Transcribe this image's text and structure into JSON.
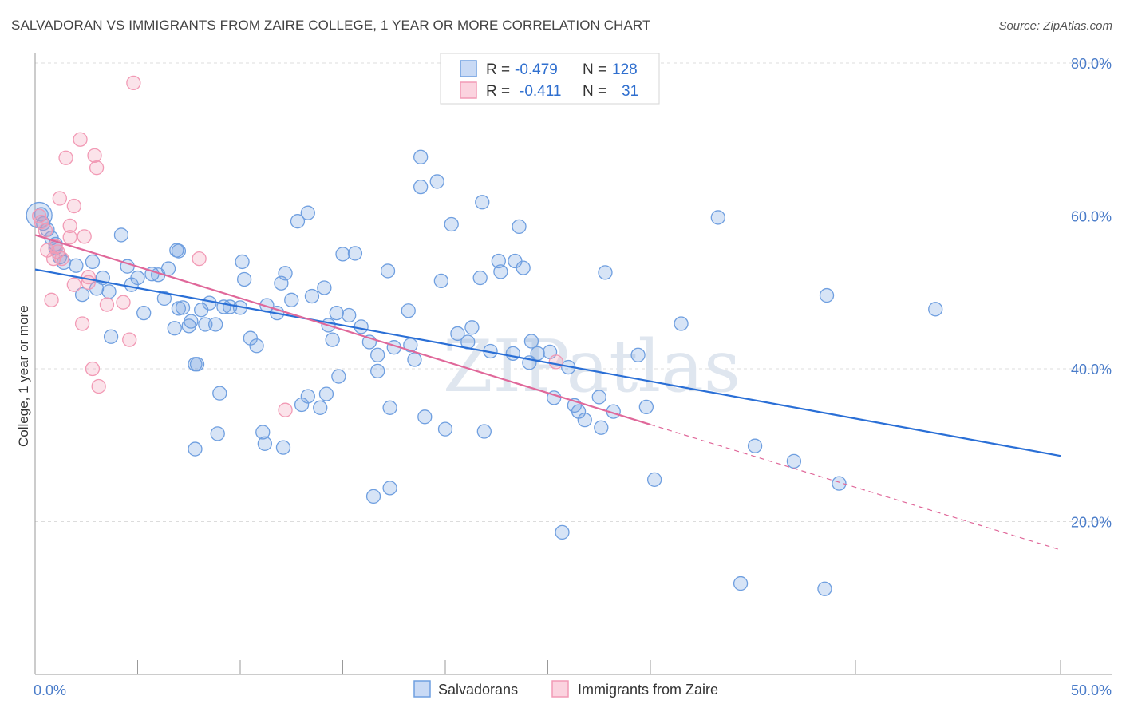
{
  "title": "SALVADORAN VS IMMIGRANTS FROM ZAIRE COLLEGE, 1 YEAR OR MORE CORRELATION CHART",
  "source": "Source: ZipAtlas.com",
  "watermark": "ZIPatlas",
  "legend": {
    "rows": [
      {
        "r_label": "R =",
        "r_value": "-0.479",
        "n_label": "N =",
        "n_value": "128",
        "color": "#6f9fe0"
      },
      {
        "r_label": "R =",
        "r_value": "-0.411",
        "n_label": "N =",
        "n_value": "31",
        "color": "#f29ab5"
      }
    ]
  },
  "bottom_legend": [
    "Salvadorans",
    "Immigrants from Zaire"
  ],
  "colors": {
    "blue": "#6f9fe0",
    "blue_line": "#2a6fd6",
    "pink": "#f29ab5",
    "pink_line": "#e0689a",
    "grid": "#dcdcdc"
  },
  "chart_data": {
    "type": "scatter",
    "title": "SALVADORAN VS IMMIGRANTS FROM ZAIRE COLLEGE, 1 YEAR OR MORE CORRELATION CHART",
    "xlabel": "",
    "ylabel": "College, 1 year or more",
    "xlim": [
      0,
      50
    ],
    "ylim": [
      0,
      85
    ],
    "x_tick_labels": [
      "0.0%",
      "50.0%"
    ],
    "y_ticks": [
      20,
      40,
      60,
      80
    ],
    "y_tick_labels": [
      "20.0%",
      "40.0%",
      "60.0%",
      "80.0%"
    ],
    "grid": true,
    "series": [
      {
        "name": "Salvadorans",
        "color": "#6f9fe0",
        "trend": {
          "x0": 0,
          "y0": 53.0,
          "x1": 50,
          "y1": 28.6
        },
        "points": [
          [
            0.3,
            60.2
          ],
          [
            0.4,
            59.0
          ],
          [
            0.6,
            58.2
          ],
          [
            0.8,
            57.1
          ],
          [
            1.0,
            56.3
          ],
          [
            1.0,
            55.8
          ],
          [
            1.2,
            54.6
          ],
          [
            1.4,
            53.9
          ],
          [
            2.0,
            53.5
          ],
          [
            2.8,
            54.0
          ],
          [
            3.3,
            51.9
          ],
          [
            3.0,
            50.5
          ],
          [
            3.6,
            50.1
          ],
          [
            2.3,
            49.7
          ],
          [
            3.7,
            44.2
          ],
          [
            4.2,
            57.5
          ],
          [
            4.5,
            53.4
          ],
          [
            5.0,
            51.9
          ],
          [
            4.7,
            51.0
          ],
          [
            5.3,
            47.3
          ],
          [
            5.7,
            52.4
          ],
          [
            6.0,
            52.3
          ],
          [
            6.5,
            53.1
          ],
          [
            6.3,
            49.2
          ],
          [
            7.0,
            47.9
          ],
          [
            6.8,
            45.3
          ],
          [
            7.2,
            48.0
          ],
          [
            7.5,
            45.6
          ],
          [
            7.6,
            46.2
          ],
          [
            6.9,
            55.5
          ],
          [
            7.0,
            55.4
          ],
          [
            8.1,
            47.7
          ],
          [
            8.5,
            48.6
          ],
          [
            8.3,
            45.8
          ],
          [
            8.8,
            45.8
          ],
          [
            9.2,
            48.1
          ],
          [
            9.5,
            48.1
          ],
          [
            7.8,
            40.6
          ],
          [
            7.9,
            40.6
          ],
          [
            9.0,
            36.8
          ],
          [
            8.9,
            31.5
          ],
          [
            10.1,
            54.0
          ],
          [
            10.2,
            51.7
          ],
          [
            10.5,
            44.0
          ],
          [
            10.8,
            43.0
          ],
          [
            10.0,
            48.0
          ],
          [
            11.3,
            48.3
          ],
          [
            12.0,
            51.2
          ],
          [
            12.2,
            52.5
          ],
          [
            12.5,
            49.0
          ],
          [
            11.8,
            47.3
          ],
          [
            12.8,
            59.3
          ],
          [
            13.3,
            60.4
          ],
          [
            13.5,
            49.5
          ],
          [
            14.1,
            50.6
          ],
          [
            14.7,
            47.3
          ],
          [
            15.3,
            47.0
          ],
          [
            15.6,
            55.1
          ],
          [
            14.5,
            43.8
          ],
          [
            14.2,
            36.7
          ],
          [
            13.9,
            34.9
          ],
          [
            13.3,
            36.4
          ],
          [
            14.8,
            39.0
          ],
          [
            15.9,
            45.5
          ],
          [
            16.3,
            43.5
          ],
          [
            16.7,
            41.8
          ],
          [
            17.2,
            52.8
          ],
          [
            17.5,
            42.8
          ],
          [
            18.2,
            47.6
          ],
          [
            18.5,
            41.2
          ],
          [
            18.8,
            63.8
          ],
          [
            18.8,
            67.7
          ],
          [
            19.6,
            64.5
          ],
          [
            19.8,
            51.5
          ],
          [
            20.3,
            58.9
          ],
          [
            20.6,
            44.6
          ],
          [
            21.1,
            43.5
          ],
          [
            21.3,
            45.4
          ],
          [
            21.8,
            61.8
          ],
          [
            22.2,
            42.3
          ],
          [
            22.6,
            54.1
          ],
          [
            22.7,
            52.7
          ],
          [
            23.6,
            58.6
          ],
          [
            23.4,
            54.1
          ],
          [
            23.8,
            53.2
          ],
          [
            24.2,
            43.6
          ],
          [
            24.5,
            42.0
          ],
          [
            25.1,
            42.2
          ],
          [
            24.1,
            40.8
          ],
          [
            23.3,
            42.0
          ],
          [
            25.3,
            36.2
          ],
          [
            26.0,
            40.2
          ],
          [
            26.3,
            35.2
          ],
          [
            26.5,
            34.4
          ],
          [
            26.8,
            33.3
          ],
          [
            27.5,
            36.3
          ],
          [
            27.6,
            32.3
          ],
          [
            28.2,
            34.4
          ],
          [
            27.8,
            52.6
          ],
          [
            29.4,
            41.8
          ],
          [
            29.8,
            35.0
          ],
          [
            30.2,
            25.5
          ],
          [
            31.5,
            45.9
          ],
          [
            33.3,
            59.8
          ],
          [
            35.1,
            29.9
          ],
          [
            37.0,
            27.9
          ],
          [
            38.6,
            49.6
          ],
          [
            39.2,
            25.0
          ],
          [
            38.5,
            11.2
          ],
          [
            34.4,
            11.9
          ],
          [
            25.7,
            18.6
          ],
          [
            21.9,
            31.8
          ],
          [
            20.0,
            32.1
          ],
          [
            19.0,
            33.7
          ],
          [
            17.3,
            34.9
          ],
          [
            13.0,
            35.3
          ],
          [
            11.1,
            31.7
          ],
          [
            7.8,
            29.5
          ],
          [
            17.3,
            24.4
          ],
          [
            16.5,
            23.3
          ],
          [
            12.1,
            29.7
          ],
          [
            11.2,
            30.2
          ],
          [
            14.3,
            45.7
          ],
          [
            15.0,
            55.0
          ],
          [
            16.7,
            39.7
          ],
          [
            43.9,
            47.8
          ],
          [
            18.3,
            43.1
          ],
          [
            21.7,
            51.9
          ]
        ]
      },
      {
        "name": "Immigrants from Zaire",
        "color": "#f29ab5",
        "trend": {
          "x0": 0,
          "y0": 57.5,
          "x1": 30,
          "y1": 32.7,
          "dash_x1": 50,
          "dash_y1": 16.3
        },
        "points": [
          [
            0.2,
            60.0
          ],
          [
            0.3,
            59.2
          ],
          [
            0.5,
            58.1
          ],
          [
            0.6,
            55.5
          ],
          [
            0.9,
            54.4
          ],
          [
            1.0,
            56.0
          ],
          [
            1.1,
            55.3
          ],
          [
            1.2,
            62.3
          ],
          [
            1.5,
            67.6
          ],
          [
            1.7,
            58.7
          ],
          [
            1.9,
            51.0
          ],
          [
            1.7,
            57.2
          ],
          [
            1.9,
            61.3
          ],
          [
            2.2,
            70.0
          ],
          [
            2.3,
            45.9
          ],
          [
            2.4,
            57.3
          ],
          [
            2.6,
            51.3
          ],
          [
            2.8,
            40.0
          ],
          [
            2.9,
            67.9
          ],
          [
            3.0,
            66.3
          ],
          [
            3.1,
            37.7
          ],
          [
            3.5,
            48.4
          ],
          [
            4.3,
            48.7
          ],
          [
            4.6,
            43.8
          ],
          [
            4.8,
            77.4
          ],
          [
            8.0,
            54.4
          ],
          [
            12.2,
            34.6
          ],
          [
            25.4,
            40.9
          ],
          [
            0.8,
            49.0
          ],
          [
            1.3,
            54.4
          ],
          [
            2.6,
            52.0
          ]
        ]
      }
    ]
  }
}
